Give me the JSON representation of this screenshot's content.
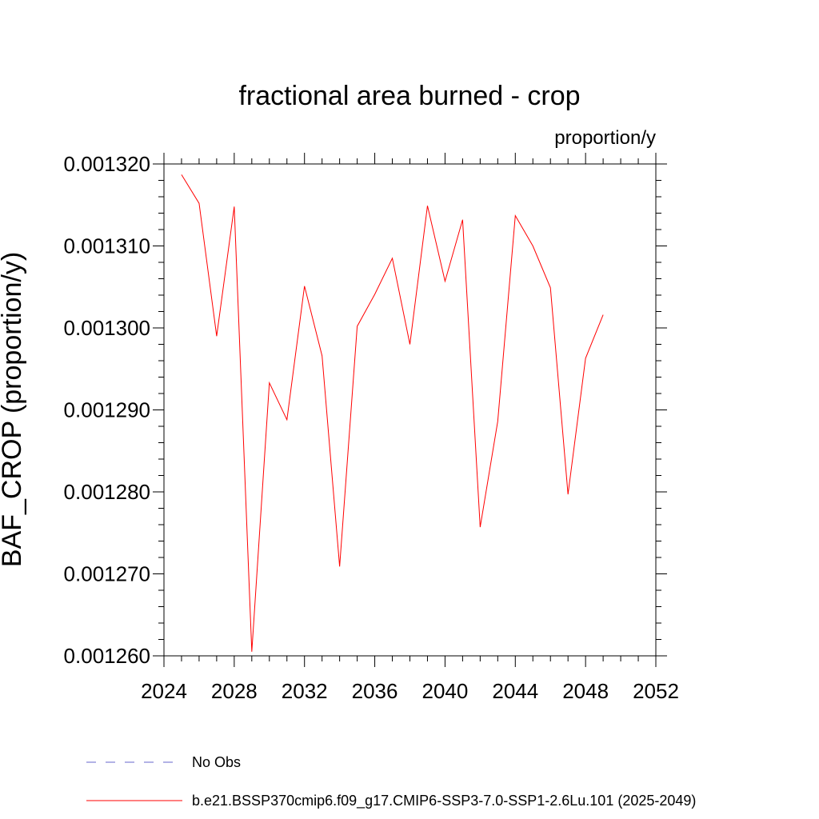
{
  "chart_data": {
    "type": "line",
    "title": "fractional area burned - crop",
    "units_label": "proportion/y",
    "ylabel": "BAF_CROP  (proportion/y)",
    "xlabel": "",
    "xlim": [
      2024,
      2052
    ],
    "ylim": [
      0.00126,
      0.00132
    ],
    "x_ticks": [
      "2024",
      "2028",
      "2032",
      "2036",
      "2040",
      "2044",
      "2048",
      "2052"
    ],
    "y_ticks": [
      "0.001260",
      "0.001270",
      "0.001280",
      "0.001290",
      "0.001300",
      "0.001310",
      "0.001320"
    ],
    "grid": false,
    "legend_position": "bottom",
    "series": [
      {
        "name": "b.e21.BSSP370cmip6.f09_g17.CMIP6-SSP3-7.0-SSP1-2.6Lu.101 (2025-2049)",
        "color": "#ff0000",
        "style": "solid",
        "x": [
          2025,
          2026,
          2027,
          2028,
          2029,
          2030,
          2031,
          2032,
          2033,
          2034,
          2035,
          2036,
          2037,
          2038,
          2039,
          2040,
          2041,
          2042,
          2043,
          2044,
          2045,
          2046,
          2047,
          2048,
          2049
        ],
        "values": [
          0.0013187,
          0.0013152,
          0.001299,
          0.0013148,
          0.0012605,
          0.0012933,
          0.0012888,
          0.0013051,
          0.0012966,
          0.0012709,
          0.0013002,
          0.0013041,
          0.0013085,
          0.001298,
          0.0013149,
          0.0013057,
          0.0013132,
          0.0012757,
          0.0012886,
          0.0013137,
          0.00131,
          0.0013049,
          0.0012797,
          0.0012963,
          0.0013016
        ]
      }
    ],
    "legend": [
      {
        "label": "No Obs",
        "color": "#6666cc",
        "style": "dashed"
      },
      {
        "label": "b.e21.BSSP370cmip6.f09_g17.CMIP6-SSP3-7.0-SSP1-2.6Lu.101 (2025-2049)",
        "color": "#ff0000",
        "style": "solid"
      }
    ]
  }
}
